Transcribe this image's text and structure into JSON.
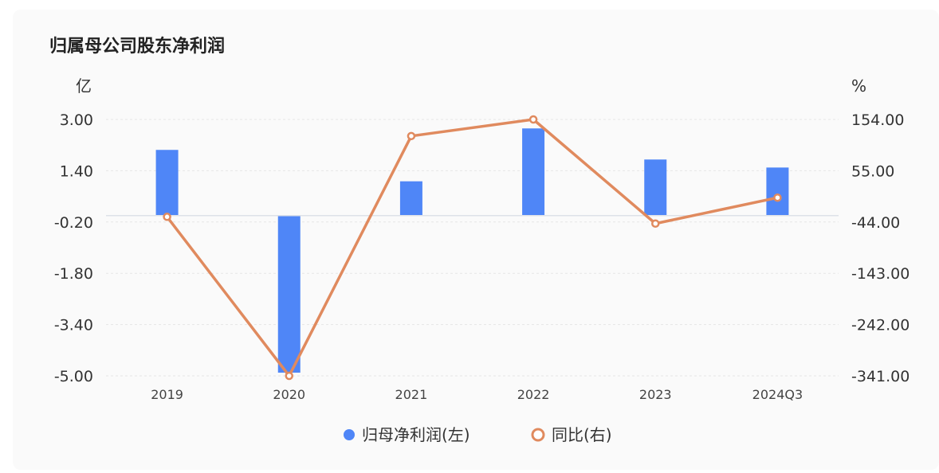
{
  "chart_data": {
    "type": "bar+line",
    "title": "归属母公司股东净利润",
    "categories": [
      "2019",
      "2020",
      "2021",
      "2022",
      "2023",
      "2024Q3"
    ],
    "left_axis": {
      "unit": "亿",
      "ticks": [
        "3.00",
        "1.40",
        "-0.20",
        "-1.80",
        "-3.40",
        "-5.00"
      ],
      "range": [
        -5.0,
        3.0
      ]
    },
    "right_axis": {
      "unit": "%",
      "ticks": [
        "154.00",
        "55.00",
        "-44.00",
        "-143.00",
        "-242.00",
        "-341.00"
      ],
      "range": [
        -341.0,
        154.0
      ]
    },
    "series": [
      {
        "name": "归母净利润(左)",
        "type": "bar",
        "axis": "left",
        "color": "#4f86f7",
        "values": [
          2.05,
          -4.9,
          1.07,
          2.72,
          1.75,
          1.5
        ]
      },
      {
        "name": "同比(右)",
        "type": "line",
        "axis": "right",
        "color": "#e08a5e",
        "values": [
          -34.0,
          -341.0,
          122.0,
          154.0,
          -47.0,
          3.0
        ]
      }
    ],
    "grid": true,
    "legend_position": "bottom-center"
  }
}
